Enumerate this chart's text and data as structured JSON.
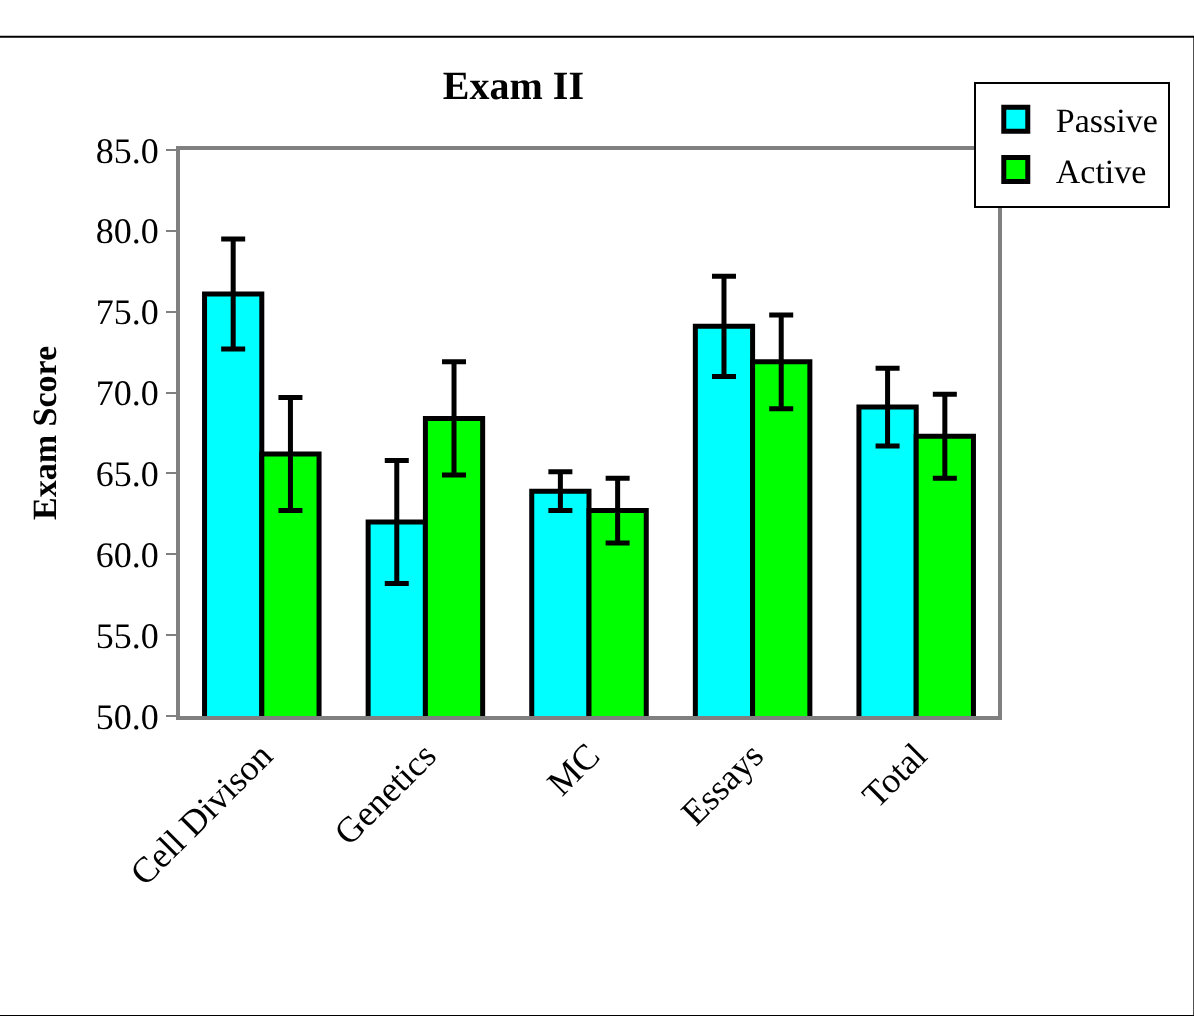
{
  "chart_data": {
    "type": "bar",
    "title": "Exam II",
    "ylabel": "Exam Score",
    "categories": [
      "Cell Divison",
      "Genetics",
      "MC",
      "Essays",
      "Total"
    ],
    "series": [
      {
        "name": "Passive",
        "color": "#00ffff",
        "values": [
          76.1,
          62.0,
          63.9,
          74.1,
          69.1
        ],
        "errors": [
          3.4,
          3.8,
          1.2,
          3.1,
          2.4
        ]
      },
      {
        "name": "Active",
        "color": "#00ff00",
        "values": [
          66.2,
          68.4,
          62.7,
          71.9,
          67.3
        ],
        "errors": [
          3.5,
          3.5,
          2.0,
          2.9,
          2.6
        ]
      }
    ],
    "ylim": [
      50,
      85
    ],
    "yticks": [
      {
        "value": 50,
        "label": "50.0"
      },
      {
        "value": 55,
        "label": "55.0"
      },
      {
        "value": 60,
        "label": "60.0"
      },
      {
        "value": 65,
        "label": "65.0"
      },
      {
        "value": 70,
        "label": "70.0"
      },
      {
        "value": 75,
        "label": "75.0"
      },
      {
        "value": 80,
        "label": "80.0"
      },
      {
        "value": 85,
        "label": "85.0"
      }
    ],
    "legend": "top right"
  }
}
